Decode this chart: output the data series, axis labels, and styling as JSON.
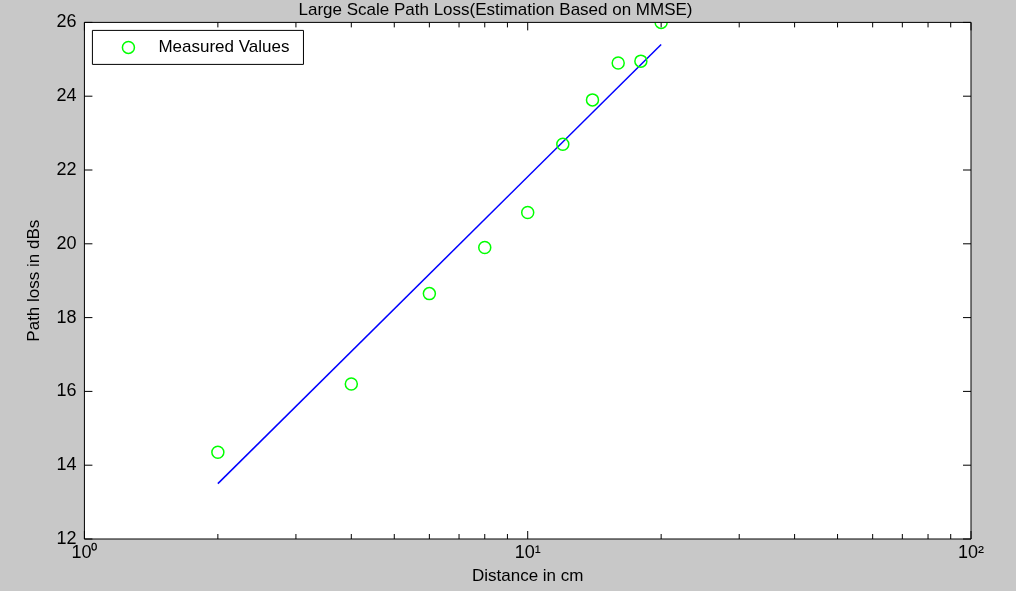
{
  "chart_data": {
    "type": "scatter",
    "title": "Large Scale Path Loss(Estimation Based on MMSE)",
    "xlabel": "Distance in cm",
    "ylabel": "Path loss in dBs",
    "log": "x",
    "xlim": [
      1,
      100
    ],
    "ylim": [
      12,
      26
    ],
    "xticks": [
      {
        "value": 1,
        "label": "10⁰"
      },
      {
        "value": 2,
        "label": null
      },
      {
        "value": 3,
        "label": null
      },
      {
        "value": 4,
        "label": null
      },
      {
        "value": 5,
        "label": null
      },
      {
        "value": 6,
        "label": null
      },
      {
        "value": 7,
        "label": null
      },
      {
        "value": 8,
        "label": null
      },
      {
        "value": 9,
        "label": null
      },
      {
        "value": 10,
        "label": "10¹"
      },
      {
        "value": 20,
        "label": null
      },
      {
        "value": 30,
        "label": null
      },
      {
        "value": 40,
        "label": null
      },
      {
        "value": 50,
        "label": null
      },
      {
        "value": 60,
        "label": null
      },
      {
        "value": 70,
        "label": null
      },
      {
        "value": 80,
        "label": null
      },
      {
        "value": 90,
        "label": null
      },
      {
        "value": 100,
        "label": "10²"
      }
    ],
    "yticks": [
      12,
      14,
      16,
      18,
      20,
      22,
      24,
      26
    ],
    "grid": false,
    "legend": "top left",
    "series": [
      {
        "name": "Measured Values",
        "color": "#00ff00",
        "marker": "circle",
        "x": [
          2,
          4,
          6,
          8,
          10,
          12,
          14,
          16,
          18,
          20
        ],
        "values": [
          14.35,
          16.2,
          18.65,
          19.9,
          20.85,
          22.7,
          23.9,
          24.9,
          24.95,
          26.0
        ]
      },
      {
        "type": "line",
        "color": "#0000ff",
        "marker": "none",
        "x": [
          2,
          20
        ],
        "values": [
          13.5,
          25.4
        ]
      }
    ]
  }
}
